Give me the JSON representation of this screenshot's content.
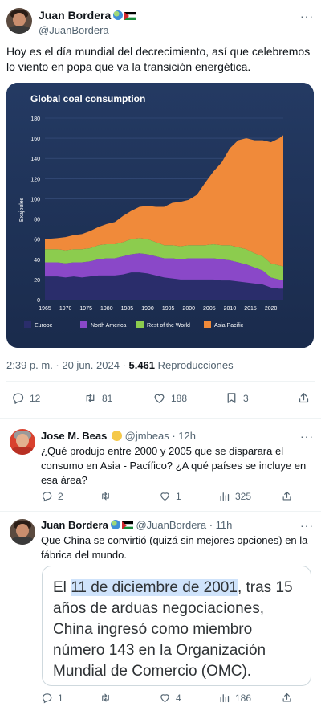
{
  "post": {
    "author_name": "Juan Bordera",
    "author_handle": "@JuanBordera",
    "text": "Hoy es el día mundial del decrecimiento, así que celebremos lo viento en popa que va la transición energética.",
    "timestamp": "2:39 p. m. · 20 jun. 2024 · ",
    "views_count": "5.461",
    "views_label": "Reproducciones",
    "stats": {
      "replies": "12",
      "reposts": "81",
      "likes": "188",
      "bookmarks": "3"
    }
  },
  "chart_data": {
    "type": "area",
    "title": "Global coal consumption",
    "ylabel": "Exajoules",
    "ylim": [
      0,
      180
    ],
    "yticks": [
      0,
      20,
      40,
      60,
      80,
      100,
      120,
      140,
      160,
      180
    ],
    "xticks": [
      "1965",
      "1970",
      "1975",
      "1980",
      "1985",
      "1990",
      "1995",
      "2000",
      "2005",
      "2010",
      "2015",
      "2020"
    ],
    "x": [
      1965,
      1968,
      1970,
      1972,
      1974,
      1976,
      1978,
      1980,
      1982,
      1984,
      1986,
      1988,
      1990,
      1992,
      1994,
      1996,
      1998,
      2000,
      2002,
      2004,
      2006,
      2008,
      2010,
      2012,
      2014,
      2016,
      2018,
      2020,
      2022,
      2023
    ],
    "stacked": true,
    "series": [
      {
        "name": "Europe",
        "color": "#2a2d6b",
        "values": [
          23,
          23,
          22,
          23,
          22,
          23,
          24,
          24,
          24,
          25,
          27,
          27,
          26,
          24,
          22,
          21,
          20,
          20,
          20,
          20,
          20,
          19,
          19,
          18,
          17,
          16,
          15,
          12,
          11,
          11
        ]
      },
      {
        "name": "North America",
        "color": "#8a48c8",
        "values": [
          14,
          14,
          14,
          14,
          15,
          15,
          16,
          17,
          17,
          18,
          18,
          19,
          19,
          19,
          19,
          20,
          20,
          21,
          21,
          21,
          21,
          21,
          20,
          19,
          18,
          16,
          14,
          10,
          9,
          8
        ]
      },
      {
        "name": "Rest of the World",
        "color": "#8ccc4e",
        "values": [
          13,
          13,
          13,
          13,
          13,
          13,
          14,
          14,
          14,
          14,
          15,
          15,
          15,
          14,
          13,
          13,
          13,
          13,
          13,
          13,
          14,
          14,
          15,
          15,
          15,
          14,
          14,
          14,
          14,
          14
        ]
      },
      {
        "name": "Asia Pacific",
        "color": "#f08a3a",
        "values": [
          10,
          11,
          13,
          14,
          15,
          17,
          18,
          20,
          22,
          26,
          28,
          31,
          33,
          35,
          38,
          42,
          44,
          45,
          50,
          62,
          72,
          82,
          96,
          106,
          110,
          112,
          115,
          120,
          126,
          130
        ]
      }
    ]
  },
  "reply1": {
    "author_name": "Jose M. Beas",
    "author_handle": "@jmbeas",
    "time": "· 12h",
    "text": "¿Qué produjo entre 2000 y 2005 que se disparara el consumo en Asia - Pacífico? ¿A qué países se incluye en esa área?",
    "stats": {
      "replies": "2",
      "reposts": "",
      "likes": "1",
      "views": "325"
    }
  },
  "reply2": {
    "author_name": "Juan Bordera",
    "author_handle": "@JuanBordera",
    "time": "· 11h",
    "text": "Que China se convirtió (quizá sin mejores opciones) en la fábrica del mundo.",
    "quote_pre": "El ",
    "quote_highlight": "11 de diciembre de 2001",
    "quote_post": ", tras 15 años de arduas negociaciones, China ingresó como miembro número 143 en la Organización Mundial de Comercio (OMC).",
    "stats": {
      "replies": "1",
      "reposts": "",
      "likes": "4",
      "views": "186"
    }
  },
  "ui": {
    "more_label": "···"
  }
}
